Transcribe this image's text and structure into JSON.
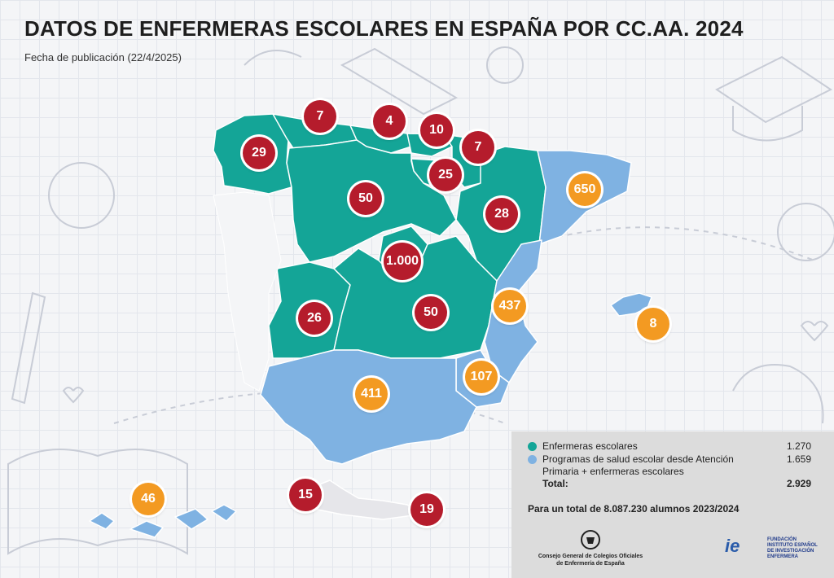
{
  "header": {
    "title": "DATOS DE ENFERMERAS ESCOLARES EN ESPAÑA POR CC.AA. 2024",
    "subtitle": "Fecha de publicación (22/4/2025)"
  },
  "colors": {
    "enfermeras": "#14a597",
    "programas": "#7fb2e2",
    "badge_red": "#b51c2c",
    "badge_orange": "#f39a22",
    "legend_bg": "#dcdcdc"
  },
  "regions": [
    {
      "name": "Galicia",
      "value": "29",
      "type": "enfermeras"
    },
    {
      "name": "Asturias",
      "value": "7",
      "type": "enfermeras"
    },
    {
      "name": "Cantabria",
      "value": "4",
      "type": "enfermeras"
    },
    {
      "name": "País Vasco",
      "value": "10",
      "type": "enfermeras"
    },
    {
      "name": "Navarra",
      "value": "7",
      "type": "enfermeras"
    },
    {
      "name": "La Rioja",
      "value": "25",
      "type": "enfermeras"
    },
    {
      "name": "Castilla y León",
      "value": "50",
      "type": "enfermeras"
    },
    {
      "name": "Aragón",
      "value": "28",
      "type": "enfermeras"
    },
    {
      "name": "Cataluña",
      "value": "650",
      "type": "programas"
    },
    {
      "name": "Madrid",
      "value": "1.000",
      "type": "enfermeras"
    },
    {
      "name": "Extremadura",
      "value": "26",
      "type": "enfermeras"
    },
    {
      "name": "Castilla-La Mancha",
      "value": "50",
      "type": "enfermeras"
    },
    {
      "name": "Comunidad Valenciana",
      "value": "437",
      "type": "programas"
    },
    {
      "name": "Baleares",
      "value": "8",
      "type": "programas"
    },
    {
      "name": "Murcia",
      "value": "107",
      "type": "programas"
    },
    {
      "name": "Andalucía",
      "value": "411",
      "type": "programas"
    },
    {
      "name": "Canarias",
      "value": "46",
      "type": "programas"
    },
    {
      "name": "Ceuta",
      "value": "15",
      "type": "enfermeras"
    },
    {
      "name": "Melilla",
      "value": "19",
      "type": "enfermeras"
    }
  ],
  "legend": {
    "enfermeras_label": "Enfermeras escolares",
    "enfermeras_value": "1.270",
    "programas_label_1": "Programas de salud escolar desde Atención",
    "programas_label_2": "Primaria + enfermeras escolares",
    "programas_value": "1.659",
    "total_label": "Total:",
    "total_value": "2.929",
    "alumnos": "Para un total de 8.087.230 alumnos 2023/2024"
  },
  "footer": {
    "org1_line1": "Consejo General de Colegios Oficiales",
    "org1_line2": "de Enfermería de España",
    "org2_line1": "FUNDACIÓN",
    "org2_line2": "INSTITUTO ESPAÑOL",
    "org2_line3": "DE INVESTIGACIÓN",
    "org2_line4": "ENFERMERA",
    "org2_mark": "ie"
  }
}
